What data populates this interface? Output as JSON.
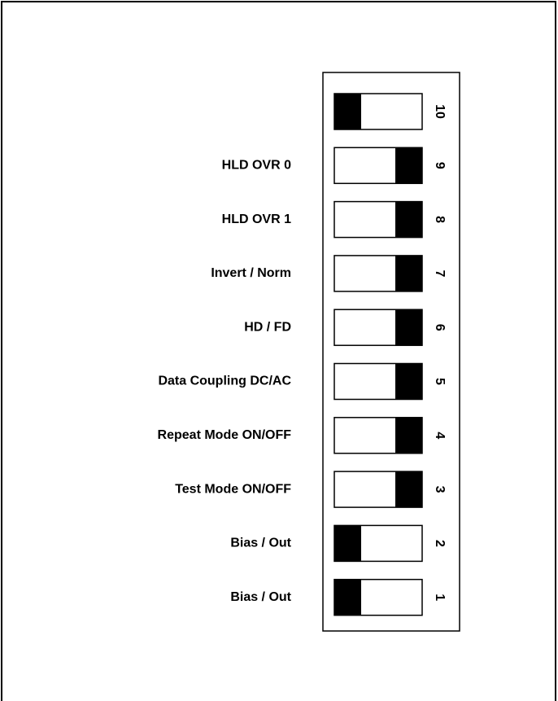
{
  "switches": [
    {
      "number": "10",
      "knob": "left"
    },
    {
      "number": "9",
      "label": "HLD OVR 0",
      "knob": "right"
    },
    {
      "number": "8",
      "label": "HLD OVR 1",
      "knob": "right"
    },
    {
      "number": "7",
      "label": "Invert / Norm",
      "knob": "right"
    },
    {
      "number": "6",
      "label": "HD / FD",
      "knob": "right"
    },
    {
      "number": "5",
      "label": "Data Coupling DC/AC",
      "knob": "right"
    },
    {
      "number": "4",
      "label": "Repeat Mode ON/OFF",
      "knob": "right"
    },
    {
      "number": "3",
      "label": "Test Mode ON/OFF",
      "knob": "right"
    },
    {
      "number": "2",
      "label": "Bias / Out",
      "knob": "left"
    },
    {
      "number": "1",
      "label": "Bias / Out",
      "knob": "left"
    }
  ]
}
